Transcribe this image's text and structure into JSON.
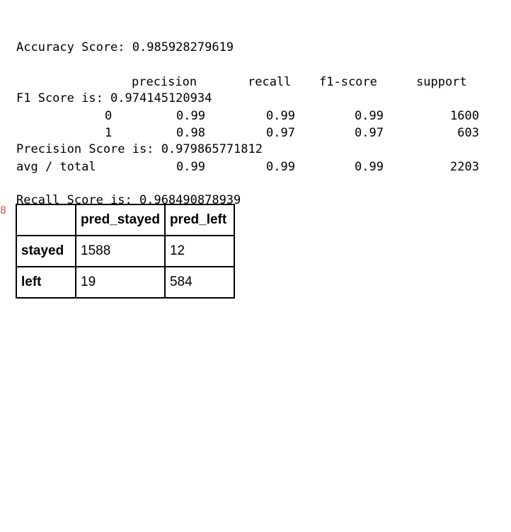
{
  "output_lines": [
    "Accuracy Score: 0.985928279619",
    "F1 Score is: 0.974145120934",
    "Precision Score is: 0.979865771812",
    "Recall Score is: 0.968490878939"
  ],
  "classification_report": {
    "headers": [
      "precision",
      "recall",
      "f1-score",
      "support"
    ],
    "rows": [
      {
        "label": "0",
        "precision": "0.99",
        "recall": "0.99",
        "f1": "0.99",
        "support": "1600"
      },
      {
        "label": "1",
        "precision": "0.98",
        "recall": "0.97",
        "f1": "0.97",
        "support": "603"
      },
      {
        "label": "avg / total",
        "precision": "0.99",
        "recall": "0.99",
        "f1": "0.99",
        "support": "2203"
      }
    ]
  },
  "confusion_table": {
    "corner": "",
    "columns": [
      "pred_stayed",
      "pred_left"
    ],
    "rows": [
      {
        "label": "stayed",
        "values": [
          "1588",
          "12"
        ]
      },
      {
        "label": "left",
        "values": [
          "19",
          "584"
        ]
      }
    ]
  },
  "edge_mark": "8"
}
